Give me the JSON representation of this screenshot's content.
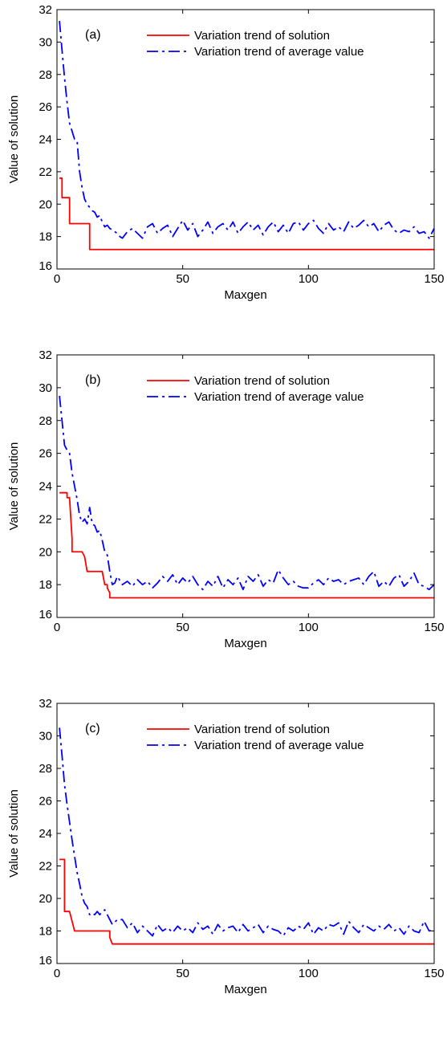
{
  "chart_data": [
    {
      "type": "line",
      "panel_label": "(a)",
      "xlabel": "Maxgen",
      "ylabel": "Value of solution",
      "xlim": [
        0,
        150
      ],
      "ylim": [
        16,
        32
      ],
      "xticks": [
        0,
        50,
        100,
        150
      ],
      "yticks": [
        16,
        18,
        20,
        22,
        24,
        26,
        28,
        30,
        32
      ],
      "legend_position": "top-right",
      "series": [
        {
          "name": "Variation trend of solution",
          "color": "#ff0000",
          "style": "solid",
          "x": [
            1,
            2,
            2,
            5,
            5,
            6,
            6,
            13,
            13,
            150
          ],
          "y": [
            21.6,
            21.6,
            20.4,
            20.4,
            18.8,
            18.8,
            18.8,
            18.8,
            17.2,
            17.2
          ]
        },
        {
          "name": "Variation trend of average value",
          "color": "#0000ff",
          "style": "dashdot",
          "x": [
            1,
            2,
            3,
            4,
            5,
            6,
            7,
            8,
            9,
            10,
            11,
            12,
            13,
            14,
            15,
            16,
            17,
            18,
            19,
            20,
            21,
            22,
            23,
            24,
            25,
            26,
            28,
            30,
            32,
            34,
            36,
            38,
            40,
            42,
            44,
            46,
            48,
            50,
            52,
            54,
            56,
            58,
            60,
            62,
            64,
            66,
            68,
            70,
            72,
            74,
            76,
            78,
            80,
            82,
            84,
            86,
            88,
            90,
            92,
            94,
            96,
            98,
            100,
            102,
            104,
            106,
            108,
            110,
            112,
            114,
            116,
            118,
            120,
            122,
            124,
            126,
            128,
            130,
            132,
            134,
            136,
            138,
            140,
            142,
            144,
            146,
            148,
            150
          ],
          "y": [
            31.3,
            29.5,
            27.8,
            26.3,
            25.0,
            24.5,
            24.0,
            23.9,
            22.0,
            21.0,
            20.3,
            20.0,
            19.8,
            19.6,
            19.5,
            19.2,
            19.3,
            18.9,
            18.6,
            18.7,
            18.5,
            18.4,
            18.3,
            18.2,
            18.0,
            17.9,
            18.3,
            18.5,
            18.2,
            17.9,
            18.6,
            18.8,
            18.2,
            18.5,
            18.7,
            18.0,
            18.5,
            19.0,
            18.4,
            18.8,
            18.0,
            18.4,
            18.9,
            18.2,
            18.6,
            18.8,
            18.4,
            18.9,
            18.2,
            18.6,
            18.9,
            18.4,
            18.7,
            18.1,
            18.6,
            18.9,
            18.3,
            18.7,
            18.2,
            18.8,
            18.9,
            18.4,
            18.8,
            19.0,
            18.5,
            18.2,
            18.8,
            18.4,
            18.6,
            18.3,
            18.9,
            18.5,
            18.7,
            19.0,
            18.6,
            18.8,
            18.3,
            18.7,
            18.9,
            18.4,
            18.2,
            18.4,
            18.3,
            18.6,
            18.2,
            18.3,
            17.9,
            18.5
          ]
        }
      ]
    },
    {
      "type": "line",
      "panel_label": "(b)",
      "xlabel": "Maxgen",
      "ylabel": "Value of solution",
      "xlim": [
        0,
        150
      ],
      "ylim": [
        16,
        32
      ],
      "xticks": [
        0,
        50,
        100,
        150
      ],
      "yticks": [
        16,
        18,
        20,
        22,
        24,
        26,
        28,
        30,
        32
      ],
      "legend_position": "top-right",
      "series": [
        {
          "name": "Variation trend of solution",
          "color": "#ff0000",
          "style": "solid",
          "x": [
            1,
            3,
            4,
            4,
            5,
            6,
            6,
            10,
            10,
            11,
            12,
            12,
            18,
            18,
            19,
            20,
            20,
            21,
            21,
            22,
            150
          ],
          "y": [
            23.6,
            23.6,
            23.6,
            23.3,
            23.3,
            20.8,
            20.0,
            20.0,
            20.0,
            19.7,
            18.8,
            18.8,
            18.8,
            18.8,
            18.0,
            18.0,
            17.8,
            17.5,
            17.2,
            17.2,
            17.2
          ]
        },
        {
          "name": "Variation trend of average value",
          "color": "#0000ff",
          "style": "dashdot",
          "x": [
            1,
            2,
            3,
            4,
            5,
            6,
            7,
            8,
            9,
            10,
            11,
            12,
            13,
            14,
            15,
            16,
            17,
            18,
            19,
            20,
            21,
            22,
            23,
            24,
            26,
            28,
            30,
            32,
            34,
            36,
            38,
            40,
            42,
            44,
            46,
            48,
            50,
            52,
            54,
            56,
            58,
            60,
            62,
            64,
            66,
            68,
            70,
            72,
            74,
            76,
            78,
            80,
            82,
            84,
            86,
            88,
            90,
            92,
            94,
            96,
            98,
            100,
            102,
            104,
            106,
            108,
            110,
            112,
            114,
            116,
            118,
            120,
            122,
            124,
            126,
            128,
            130,
            132,
            134,
            136,
            138,
            140,
            142,
            144,
            146,
            148,
            150
          ],
          "y": [
            29.5,
            28.0,
            26.5,
            26.2,
            26.0,
            24.8,
            24.0,
            23.2,
            22.2,
            21.8,
            22.0,
            21.7,
            22.7,
            21.7,
            21.6,
            21.2,
            21.3,
            20.7,
            20.0,
            19.8,
            18.8,
            18.0,
            18.1,
            18.5,
            18.0,
            18.2,
            17.9,
            18.3,
            18.0,
            18.2,
            17.8,
            18.1,
            18.5,
            18.2,
            18.6,
            18.0,
            18.4,
            18.1,
            18.5,
            18.0,
            17.7,
            18.2,
            17.9,
            18.5,
            17.8,
            18.3,
            18.0,
            18.4,
            17.7,
            18.5,
            18.2,
            18.6,
            17.9,
            18.3,
            18.1,
            18.9,
            18.4,
            18.0,
            18.2,
            17.9,
            17.8,
            17.8,
            18.1,
            18.3,
            18.0,
            18.4,
            18.2,
            18.3,
            18.0,
            18.2,
            18.3,
            18.4,
            18.0,
            18.5,
            18.8,
            17.9,
            18.2,
            17.9,
            18.4,
            18.6,
            17.9,
            18.2,
            18.7,
            18.0,
            17.9,
            17.7,
            18.0
          ]
        }
      ]
    },
    {
      "type": "line",
      "panel_label": "(c)",
      "xlabel": "Maxgen",
      "ylabel": "Value of solution",
      "xlim": [
        0,
        150
      ],
      "ylim": [
        16,
        32
      ],
      "xticks": [
        0,
        50,
        100,
        150
      ],
      "yticks": [
        16,
        18,
        20,
        22,
        24,
        26,
        28,
        30,
        32
      ],
      "legend_position": "top-right",
      "series": [
        {
          "name": "Variation trend of solution",
          "color": "#ff0000",
          "style": "solid",
          "x": [
            1,
            3,
            3,
            5,
            5,
            7,
            7,
            21,
            21,
            22,
            150
          ],
          "y": [
            22.4,
            22.4,
            19.2,
            19.2,
            19.2,
            18.0,
            18.0,
            18.0,
            17.6,
            17.2,
            17.2
          ]
        },
        {
          "name": "Variation trend of average value",
          "color": "#0000ff",
          "style": "dashdot",
          "x": [
            1,
            2,
            3,
            4,
            5,
            6,
            7,
            8,
            9,
            10,
            11,
            12,
            13,
            14,
            15,
            16,
            17,
            18,
            19,
            20,
            22,
            24,
            26,
            28,
            30,
            32,
            34,
            36,
            38,
            40,
            42,
            44,
            46,
            48,
            50,
            52,
            54,
            56,
            58,
            60,
            62,
            64,
            66,
            68,
            70,
            72,
            74,
            76,
            78,
            80,
            82,
            84,
            86,
            88,
            90,
            92,
            94,
            96,
            98,
            100,
            102,
            104,
            106,
            108,
            110,
            112,
            114,
            116,
            118,
            120,
            122,
            124,
            126,
            128,
            130,
            132,
            134,
            136,
            138,
            140,
            142,
            144,
            146,
            148,
            150
          ],
          "y": [
            30.5,
            28.8,
            27.0,
            25.8,
            24.7,
            23.6,
            22.6,
            21.6,
            20.9,
            20.1,
            19.7,
            19.5,
            19.0,
            19.1,
            19.0,
            19.2,
            19.0,
            19.2,
            19.3,
            19.0,
            18.4,
            18.7,
            18.7,
            18.2,
            18.5,
            17.9,
            18.3,
            18.0,
            17.7,
            18.4,
            18.0,
            18.2,
            17.9,
            18.3,
            18.0,
            18.2,
            17.9,
            18.5,
            18.1,
            18.3,
            17.8,
            18.4,
            18.0,
            18.2,
            18.3,
            17.9,
            18.4,
            18.0,
            18.2,
            18.4,
            17.9,
            18.3,
            18.1,
            18.0,
            17.7,
            18.2,
            18.0,
            18.3,
            18.1,
            18.5,
            17.8,
            18.2,
            18.0,
            18.4,
            18.3,
            18.5,
            17.8,
            18.6,
            18.2,
            17.9,
            18.4,
            18.2,
            18.0,
            18.3,
            18.1,
            18.4,
            18.0,
            18.2,
            17.8,
            18.3,
            18.0,
            17.9,
            18.6,
            18.0,
            18.1
          ]
        }
      ]
    }
  ]
}
